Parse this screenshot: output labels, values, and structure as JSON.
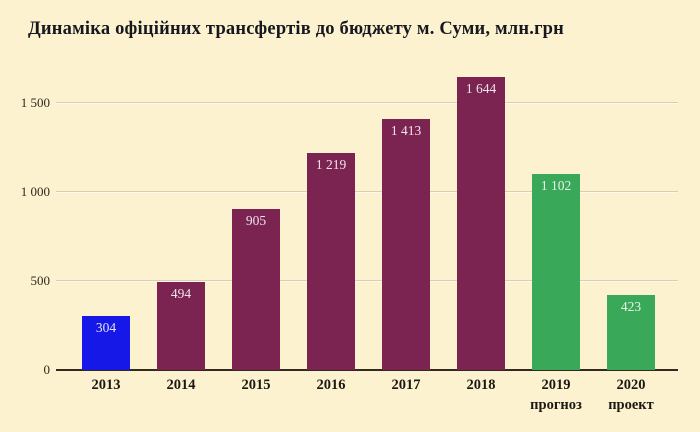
{
  "chart_data": {
    "type": "bar",
    "title": "Динаміка офіційних трансфертів до бюджету м. Суми, млн.грн",
    "unit": "млн.грн",
    "categories": [
      {
        "line1": "2013",
        "line2": ""
      },
      {
        "line1": "2014",
        "line2": ""
      },
      {
        "line1": "2015",
        "line2": ""
      },
      {
        "line1": "2016",
        "line2": ""
      },
      {
        "line1": "2017",
        "line2": ""
      },
      {
        "line1": "2018",
        "line2": ""
      },
      {
        "line1": "2019",
        "line2": "прогноз"
      },
      {
        "line1": "2020",
        "line2": "проект"
      }
    ],
    "values": [
      304,
      494,
      905,
      1219,
      1413,
      1644,
      1102,
      423
    ],
    "value_labels": [
      "304",
      "494",
      "905",
      "1 219",
      "1 413",
      "1 644",
      "1 102",
      "423"
    ],
    "bar_colors": [
      "#1518e6",
      "#7b2452",
      "#7b2452",
      "#7b2452",
      "#7b2452",
      "#7b2452",
      "#3aa859",
      "#3aa859"
    ],
    "y_ticks": [
      {
        "label": "0",
        "value": 0
      },
      {
        "label": "500",
        "value": 500
      },
      {
        "label": "1 000",
        "value": 1000
      },
      {
        "label": "1 500",
        "value": 1500
      }
    ],
    "ylim": [
      0,
      1697
    ],
    "grid": true,
    "legend": "none",
    "colors": {
      "background": "#fdf2d0",
      "grid": "#d6cfb4",
      "axis": "#322a1e",
      "title_text": "#17171f",
      "tick_text": "#2e281e",
      "historical_bar": "#7b2452",
      "start_year_bar": "#1518e6",
      "forecast_bar": "#3aa859"
    }
  }
}
